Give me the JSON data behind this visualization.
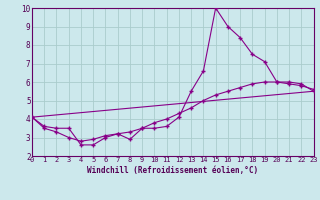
{
  "xlabel": "Windchill (Refroidissement éolien,°C)",
  "background_color": "#cce8ec",
  "grid_color": "#aacccc",
  "line_color": "#880088",
  "xlim": [
    0,
    23
  ],
  "ylim": [
    2,
    10
  ],
  "xticks": [
    0,
    1,
    2,
    3,
    4,
    5,
    6,
    7,
    8,
    9,
    10,
    11,
    12,
    13,
    14,
    15,
    16,
    17,
    18,
    19,
    20,
    21,
    22,
    23
  ],
  "yticks": [
    2,
    3,
    4,
    5,
    6,
    7,
    8,
    9,
    10
  ],
  "series1_x": [
    0,
    1,
    2,
    3,
    4,
    5,
    6,
    7,
    8,
    9,
    10,
    11,
    12,
    13,
    14,
    15,
    16,
    17,
    18,
    19,
    20,
    21,
    22,
    23
  ],
  "series1_y": [
    4.1,
    3.6,
    3.5,
    3.5,
    2.6,
    2.6,
    3.0,
    3.2,
    2.9,
    3.5,
    3.5,
    3.6,
    4.1,
    5.5,
    6.6,
    10.0,
    9.0,
    8.4,
    7.5,
    7.1,
    6.0,
    6.0,
    5.9,
    5.5
  ],
  "series2_x": [
    0,
    1,
    2,
    3,
    4,
    5,
    6,
    7,
    8,
    9,
    10,
    11,
    12,
    13,
    14,
    15,
    16,
    17,
    18,
    19,
    20,
    21,
    22,
    23
  ],
  "series2_y": [
    4.1,
    3.5,
    3.3,
    3.0,
    2.8,
    2.9,
    3.1,
    3.2,
    3.3,
    3.5,
    3.8,
    4.0,
    4.3,
    4.6,
    5.0,
    5.3,
    5.5,
    5.7,
    5.9,
    6.0,
    6.0,
    5.9,
    5.8,
    5.6
  ],
  "series3_x": [
    0,
    23
  ],
  "series3_y": [
    4.1,
    5.5
  ]
}
